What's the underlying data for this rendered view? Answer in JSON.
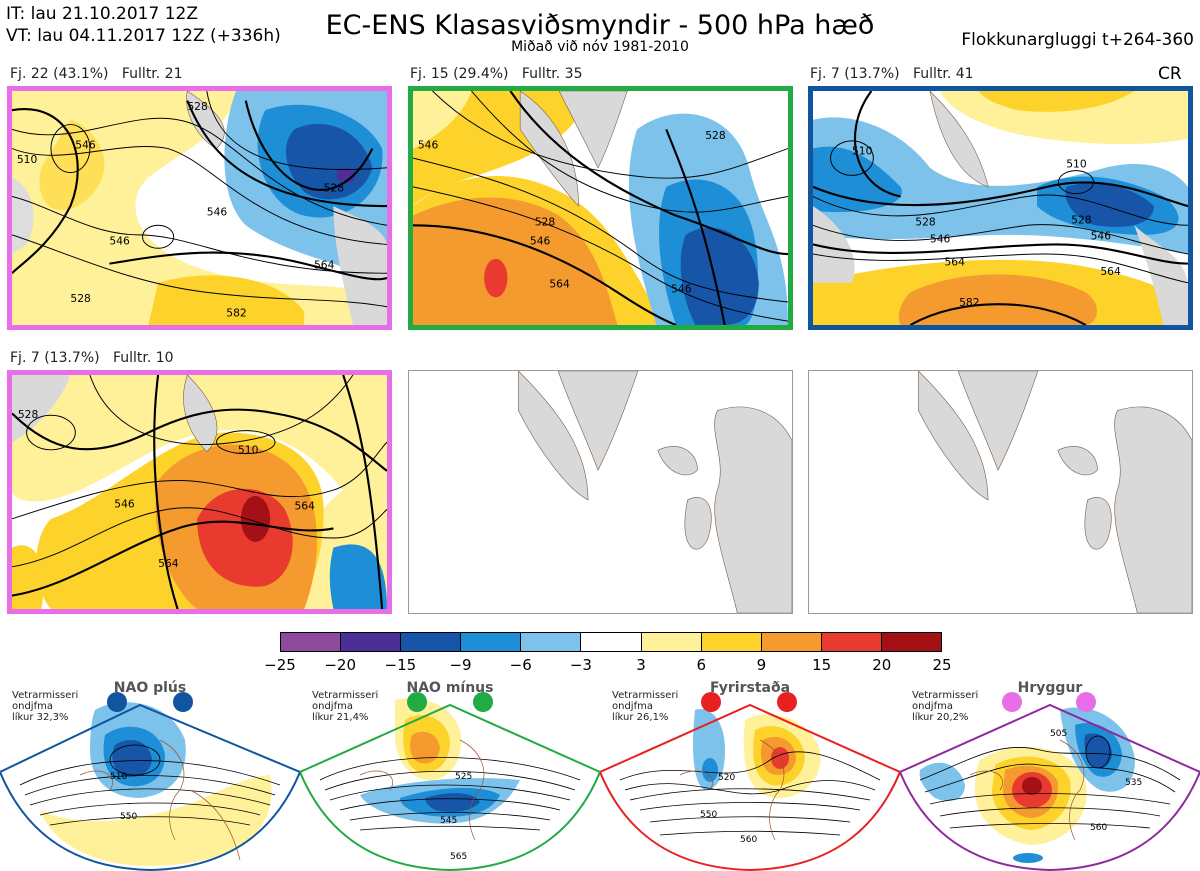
{
  "header": {
    "it": "IT: lau 21.10.2017 12Z",
    "vt": "VT: lau 04.11.2017 12Z  (+336h)",
    "title": "EC-ENS Klasasviðsmyndir - 500 hPa hæð",
    "subtitle": "Miðað við nóv 1981-2010",
    "window": "Flokkunargluggi t+264-360"
  },
  "clusters": [
    {
      "label": "Fj. 22 (43.1%)",
      "rep": "Fulltr. 21",
      "border": "#e86ee8",
      "contours": [
        "528",
        "546",
        "528",
        "546",
        "528",
        "546",
        "564",
        "582",
        "510"
      ]
    },
    {
      "label": "Fj. 15 (29.4%)",
      "rep": "Fulltr. 35",
      "border": "#22aa44",
      "contours": [
        "528",
        "546",
        "564",
        "546",
        "528",
        "546"
      ]
    },
    {
      "label": "Fj. 7 (13.7%)",
      "rep": "Fulltr. 41",
      "border": "#1155a0",
      "contours": [
        "510",
        "528",
        "546",
        "564",
        "582",
        "510",
        "528",
        "546",
        "564"
      ],
      "regime_code": "CR"
    },
    {
      "label": "Fj. 7 (13.7%)",
      "rep": "Fulltr. 10",
      "border": "#e86ee8",
      "contours": [
        "510",
        "546",
        "564",
        "564",
        "528"
      ]
    }
  ],
  "colorbar": {
    "ticks": [
      "−25",
      "−20",
      "−15",
      "−9",
      "−6",
      "−3",
      "3",
      "6",
      "9",
      "15",
      "20",
      "25"
    ],
    "colors": [
      "#8e4a9c",
      "#4b2f96",
      "#1655a8",
      "#1e8fd6",
      "#7cc2ea",
      "#ffffff",
      "#fff19a",
      "#fdd32b",
      "#f59a2e",
      "#e83a2e",
      "#a31016"
    ]
  },
  "regimes": [
    {
      "name": "NAO plús",
      "stat_line1": "Vetrarmisseri",
      "stat_line2": "ondjfma",
      "stat_line3": "líkur 32,3%",
      "color": "#1155a0",
      "labels": [
        "510",
        "550"
      ]
    },
    {
      "name": "NAO mínus",
      "stat_line1": "Vetrarmisseri",
      "stat_line2": "ondjfma",
      "stat_line3": "líkur 21,4%",
      "color": "#22aa44",
      "labels": [
        "525",
        "545",
        "565"
      ]
    },
    {
      "name": "Fyrirstaða",
      "stat_line1": "Vetrarmisseri",
      "stat_line2": "ondjfma",
      "stat_line3": "líkur 26,1%",
      "color": "#e82020",
      "labels": [
        "520",
        "550",
        "560"
      ]
    },
    {
      "name": "Hryggur",
      "stat_line1": "Vetrarmisseri",
      "stat_line2": "ondjfma",
      "stat_line3": "líkur 20,2%",
      "color": "#e86ee8",
      "labels": [
        "505",
        "535",
        "560"
      ]
    }
  ]
}
